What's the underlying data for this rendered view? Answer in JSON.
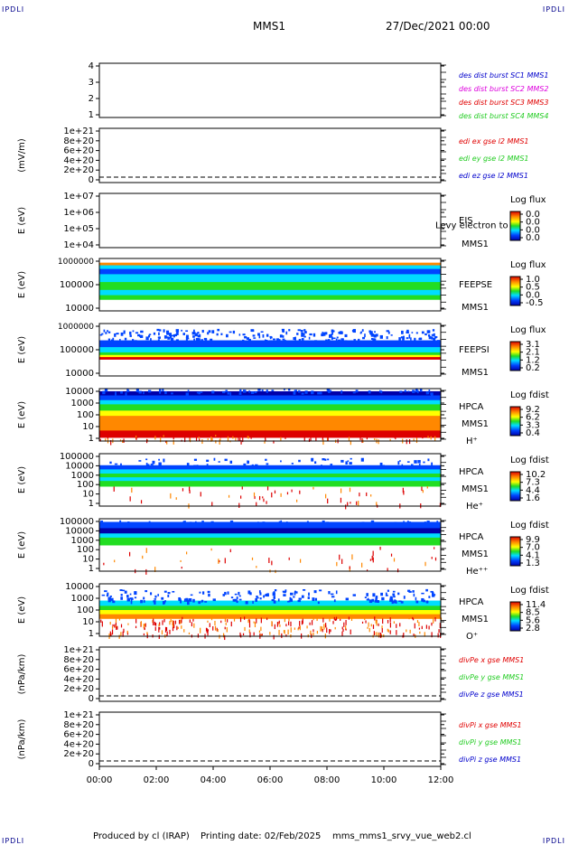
{
  "corner_label": "IPDLI",
  "header": {
    "spacecraft": "MMS1",
    "datetime": "27/Dec/2021 00:00"
  },
  "footer": {
    "produced_by": "Produced by cl (IRAP)",
    "printing_date": "Printing date: 02/Feb/2025",
    "file": "mms_mms1_srvy_vue_web2.cl"
  },
  "colors": {
    "red": "#e00000",
    "green": "#22cc22",
    "blue": "#0000cc",
    "magenta": "#dd00dd"
  },
  "chart_data": {
    "type": "heatmap",
    "x_axis": {
      "range": [
        "00:00",
        "12:00"
      ],
      "ticks": [
        "00:00",
        "02:00",
        "04:00",
        "06:00",
        "08:00",
        "10:00",
        "12:00"
      ]
    },
    "panels": [
      {
        "kind": "line",
        "ylabel": "",
        "yticks": [
          "4",
          "3",
          "2",
          "1"
        ],
        "legend": [
          {
            "text": "des dist burst SC1 MMS1",
            "color": "blue"
          },
          {
            "text": "des dist burst SC2 MMS2",
            "color": "magenta"
          },
          {
            "text": "des dist burst SC3 MMS3",
            "color": "red"
          },
          {
            "text": "des dist burst SC4 MMS4",
            "color": "green"
          }
        ]
      },
      {
        "kind": "line",
        "ylabel": "(mV/m)",
        "yticks": [
          "1e+21",
          "8e+20",
          "6e+20",
          "4e+20",
          "2e+20",
          "0"
        ],
        "zero_line": true,
        "legend": [
          {
            "text": "edi ex gse l2 MMS1",
            "color": "red"
          },
          {
            "text": "edi ey gse l2 MMS1",
            "color": "green"
          },
          {
            "text": "edi ez gse l2 MMS1",
            "color": "blue"
          }
        ]
      },
      {
        "kind": "spectrogram",
        "ylabel": "E (eV)",
        "yticks": [
          "1e+07",
          "1e+06",
          "1e+05",
          "1e+04"
        ],
        "instrument": "EIS",
        "overlay": "Levy electron to",
        "sc": "MMS1",
        "species": "",
        "colorbar": {
          "title": "Log flux",
          "ticks": [
            "0.0",
            "0.0",
            "0.0",
            "0.0"
          ]
        },
        "fill": "none"
      },
      {
        "kind": "spectrogram",
        "ylabel": "E (eV)",
        "yticks": [
          "1000000",
          "100000",
          "10000"
        ],
        "instrument": "FEEPSE",
        "overlay": "",
        "sc": "MMS1",
        "species": "",
        "colorbar": {
          "title": "Log flux",
          "ticks": [
            "1.0",
            "0.5",
            "0.0",
            "-0.5"
          ]
        },
        "fill": "feepse"
      },
      {
        "kind": "spectrogram",
        "ylabel": "E (eV)",
        "yticks": [
          "1000000",
          "100000",
          "10000"
        ],
        "instrument": "FEEPSI",
        "overlay": "",
        "sc": "MMS1",
        "species": "",
        "colorbar": {
          "title": "Log flux",
          "ticks": [
            "3.1",
            "2.1",
            "1.2",
            "0.2"
          ]
        },
        "fill": "feepsi"
      },
      {
        "kind": "spectrogram",
        "ylabel": "E (eV)",
        "yticks": [
          "10000",
          "1000",
          "100",
          "10",
          "1"
        ],
        "instrument": "HPCA",
        "overlay": "",
        "sc": "MMS1",
        "species": "H⁺",
        "colorbar": {
          "title": "Log fdist",
          "ticks": [
            "9.2",
            "6.2",
            "3.3",
            "0.4"
          ]
        },
        "fill": "hplus"
      },
      {
        "kind": "spectrogram",
        "ylabel": "E (eV)",
        "yticks": [
          "100000",
          "10000",
          "1000",
          "100",
          "10",
          "1"
        ],
        "instrument": "HPCA",
        "overlay": "",
        "sc": "MMS1",
        "species": "He⁺",
        "colorbar": {
          "title": "Log fdist",
          "ticks": [
            "10.2",
            "7.3",
            "4.4",
            "1.6"
          ]
        },
        "fill": "heplus"
      },
      {
        "kind": "spectrogram",
        "ylabel": "E (eV)",
        "yticks": [
          "100000",
          "10000",
          "1000",
          "100",
          "10",
          "1"
        ],
        "instrument": "HPCA",
        "overlay": "",
        "sc": "MMS1",
        "species": "He⁺⁺",
        "colorbar": {
          "title": "Log fdist",
          "ticks": [
            "9.9",
            "7.0",
            "4.1",
            "1.3"
          ]
        },
        "fill": "hepp"
      },
      {
        "kind": "spectrogram",
        "ylabel": "E (eV)",
        "yticks": [
          "10000",
          "1000",
          "100",
          "10",
          "1"
        ],
        "instrument": "HPCA",
        "overlay": "",
        "sc": "MMS1",
        "species": "O⁺",
        "colorbar": {
          "title": "Log fdist",
          "ticks": [
            "11.4",
            "8.5",
            "5.6",
            "2.8"
          ]
        },
        "fill": "oplus"
      },
      {
        "kind": "line",
        "ylabel": "(nPa/km)",
        "yticks": [
          "1e+21",
          "8e+20",
          "6e+20",
          "4e+20",
          "2e+20",
          "0"
        ],
        "zero_line": true,
        "legend": [
          {
            "text": "divPe x gse MMS1",
            "color": "red"
          },
          {
            "text": "divPe y gse MMS1",
            "color": "green"
          },
          {
            "text": "divPe z gse MMS1",
            "color": "blue"
          }
        ]
      },
      {
        "kind": "line",
        "ylabel": "(nPa/km)",
        "yticks": [
          "1e+21",
          "8e+20",
          "6e+20",
          "4e+20",
          "2e+20",
          "0"
        ],
        "zero_line": true,
        "legend": [
          {
            "text": "divPi x gse MMS1",
            "color": "red"
          },
          {
            "text": "divPi y gse MMS1",
            "color": "green"
          },
          {
            "text": "divPi z gse MMS1",
            "color": "blue"
          }
        ]
      }
    ]
  }
}
